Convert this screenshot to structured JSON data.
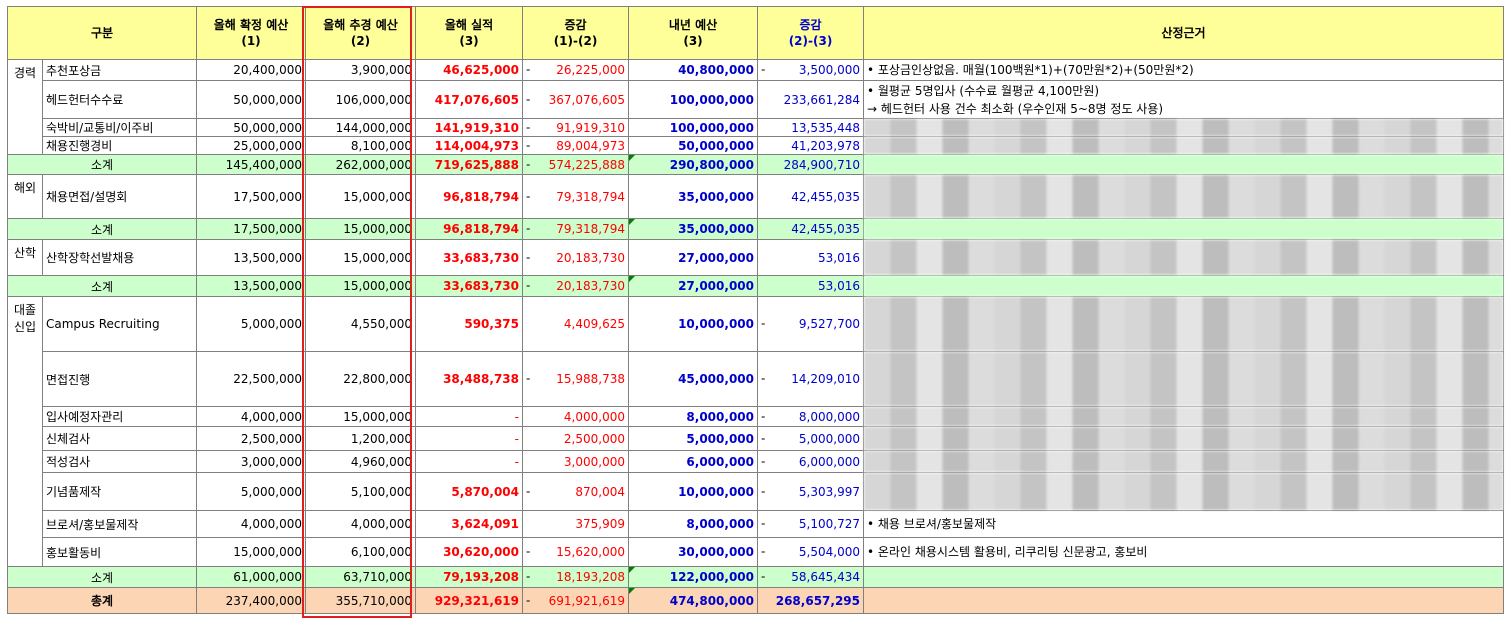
{
  "headers": {
    "category": "구분",
    "confirmed_budget": "올해 확정 예산",
    "confirmed_budget_no": "(1)",
    "revised_budget": "올해 추경 예산",
    "revised_budget_no": "(2)",
    "actual": "올해 실적",
    "actual_no": "(3)",
    "change1": "증감",
    "change1_formula": "(1)-(2)",
    "next_budget": "내년 예산",
    "next_budget_no": "(3)",
    "change2": "증감",
    "change2_formula": "(2)-(3)",
    "basis": "산정근거"
  },
  "dash": "-",
  "groups": {
    "career": {
      "label": "경력",
      "rows": [
        {
          "item": "추천포상금",
          "c1": "20,400,000",
          "c2": "3,900,000",
          "c3": "46,625,000",
          "d1": "26,225,000",
          "n": "40,800,000",
          "d2": "3,500,000",
          "basis": "• 포상금인상없음. 매월(100백원*1)+(70만원*2)+(50만원*2)"
        },
        {
          "item": "헤드헌터수수료",
          "c1": "50,000,000",
          "c2": "106,000,000",
          "c3": "417,076,605",
          "d1": "367,076,605",
          "n": "100,000,000",
          "d2": "233,661,284",
          "basis": "• 월평균 5명입사 (수수료 월평균 4,100만원)",
          "basis2": "→ 헤드헌터 사용 건수 최소화 (우수인재 5~8명 정도 사용)"
        },
        {
          "item": "숙박비/교통비/이주비",
          "c1": "50,000,000",
          "c2": "144,000,000",
          "c3": "141,919,310",
          "d1": "91,919,310",
          "n": "100,000,000",
          "d2": "13,535,448"
        },
        {
          "item": "채용진행경비",
          "c1": "25,000,000",
          "c2": "8,100,000",
          "c3": "114,004,973",
          "d1": "89,004,973",
          "n": "50,000,000",
          "d2": "41,203,978"
        }
      ],
      "subtotal": {
        "label": "소계",
        "c1": "145,400,000",
        "c2": "262,000,000",
        "c3": "719,625,888",
        "d1": "574,225,888",
        "n": "290,800,000",
        "d2": "284,900,710"
      }
    },
    "overseas": {
      "label": "해외",
      "rows": [
        {
          "item": "채용면접/설명회",
          "c1": "17,500,000",
          "c2": "15,000,000",
          "c3": "96,818,794",
          "d1": "79,318,794",
          "n": "35,000,000",
          "d2": "42,455,035"
        }
      ],
      "subtotal": {
        "label": "소계",
        "c1": "17,500,000",
        "c2": "15,000,000",
        "c3": "96,818,794",
        "d1": "79,318,794",
        "n": "35,000,000",
        "d2": "42,455,035"
      }
    },
    "industry": {
      "label": "산학",
      "rows": [
        {
          "item": "산학장학선발채용",
          "c1": "13,500,000",
          "c2": "15,000,000",
          "c3": "33,683,730",
          "d1": "20,183,730",
          "n": "27,000,000",
          "d2": "53,016"
        }
      ],
      "subtotal": {
        "label": "소계",
        "c1": "13,500,000",
        "c2": "15,000,000",
        "c3": "33,683,730",
        "d1": "20,183,730",
        "n": "27,000,000",
        "d2": "53,016"
      }
    },
    "grad": {
      "label1": "대졸",
      "label2": "신입",
      "rows": [
        {
          "item": "Campus Recruiting",
          "c1": "5,000,000",
          "c2": "4,550,000",
          "c3": "590,375",
          "d1": "4,409,625",
          "n": "10,000,000",
          "d2": "9,527,700"
        },
        {
          "item": "면접진행",
          "c1": "22,500,000",
          "c2": "22,800,000",
          "c3": "38,488,738",
          "d1": "15,988,738",
          "n": "45,000,000",
          "d2": "14,209,010"
        },
        {
          "item": "입사예정자관리",
          "c1": "4,000,000",
          "c2": "15,000,000",
          "c3": "-",
          "d1": "4,000,000",
          "n": "8,000,000",
          "d2": "8,000,000"
        },
        {
          "item": "신체검사",
          "c1": "2,500,000",
          "c2": "1,200,000",
          "c3": "-",
          "d1": "2,500,000",
          "n": "5,000,000",
          "d2": "5,000,000"
        },
        {
          "item": "적성검사",
          "c1": "3,000,000",
          "c2": "4,960,000",
          "c3": "-",
          "d1": "3,000,000",
          "n": "6,000,000",
          "d2": "6,000,000"
        },
        {
          "item": "기념품제작",
          "c1": "5,000,000",
          "c2": "5,100,000",
          "c3": "5,870,004",
          "d1": "870,004",
          "n": "10,000,000",
          "d2": "5,303,997"
        },
        {
          "item": "브로셔/홍보물제작",
          "c1": "4,000,000",
          "c2": "4,000,000",
          "c3": "3,624,091",
          "d1": "375,909",
          "n": "8,000,000",
          "d2": "5,100,727",
          "basis": "• 채용 브로셔/홍보물제작"
        },
        {
          "item": "홍보활동비",
          "c1": "15,000,000",
          "c2": "6,100,000",
          "c3": "30,620,000",
          "d1": "15,620,000",
          "n": "30,000,000",
          "d2": "5,504,000",
          "basis": "• 온라인 채용시스템 활용비, 리쿠리팅 신문광고, 홍보비"
        }
      ],
      "subtotal": {
        "label": "소계",
        "c1": "61,000,000",
        "c2": "63,710,000",
        "c3": "79,193,208",
        "d1": "18,193,208",
        "n": "122,000,000",
        "d2": "58,645,434"
      }
    }
  },
  "total": {
    "label": "총계",
    "c1": "237,400,000",
    "c2": "355,710,000",
    "c3": "929,321,619",
    "d1": "691,921,619",
    "n": "474,800,000",
    "d2": "268,657,295"
  }
}
